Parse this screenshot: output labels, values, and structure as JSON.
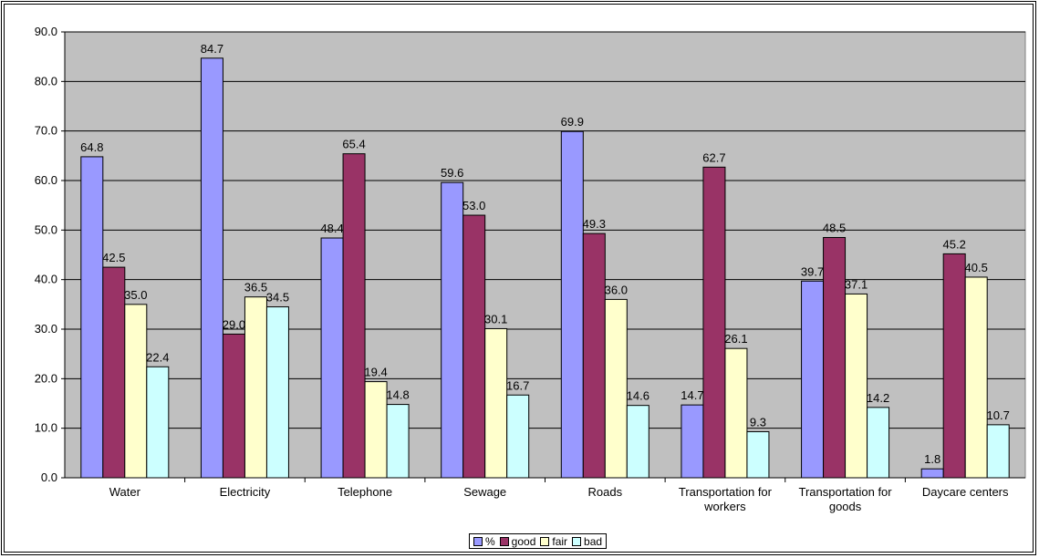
{
  "chart_data": {
    "type": "bar",
    "title": "",
    "xlabel": "",
    "ylabel": "",
    "ylim": [
      0,
      90
    ],
    "yticks": [
      "0.0",
      "10.0",
      "20.0",
      "30.0",
      "40.0",
      "50.0",
      "60.0",
      "70.0",
      "80.0",
      "90.0"
    ],
    "grid": true,
    "legend_position": "bottom",
    "categories": [
      [
        "Water"
      ],
      [
        "Electricity"
      ],
      [
        "Telephone"
      ],
      [
        "Sewage"
      ],
      [
        "Roads"
      ],
      [
        "Transportation for",
        "workers"
      ],
      [
        "Transportation for",
        "goods"
      ],
      [
        "Daycare centers"
      ]
    ],
    "series": [
      {
        "name": "%",
        "color": "#9999ff",
        "values": [
          64.8,
          84.7,
          48.4,
          59.6,
          69.9,
          14.7,
          39.7,
          1.8
        ]
      },
      {
        "name": "good",
        "color": "#993366",
        "values": [
          42.5,
          29.0,
          65.4,
          53.0,
          49.3,
          62.7,
          48.5,
          45.2
        ]
      },
      {
        "name": "fair",
        "color": "#ffffcc",
        "values": [
          35.0,
          36.5,
          19.4,
          30.1,
          36.0,
          26.1,
          37.1,
          40.5
        ]
      },
      {
        "name": "bad",
        "color": "#ccffff",
        "values": [
          22.4,
          34.5,
          14.8,
          16.7,
          14.6,
          9.3,
          14.2,
          10.7
        ]
      }
    ],
    "plot_background": "#c0c0c0"
  }
}
